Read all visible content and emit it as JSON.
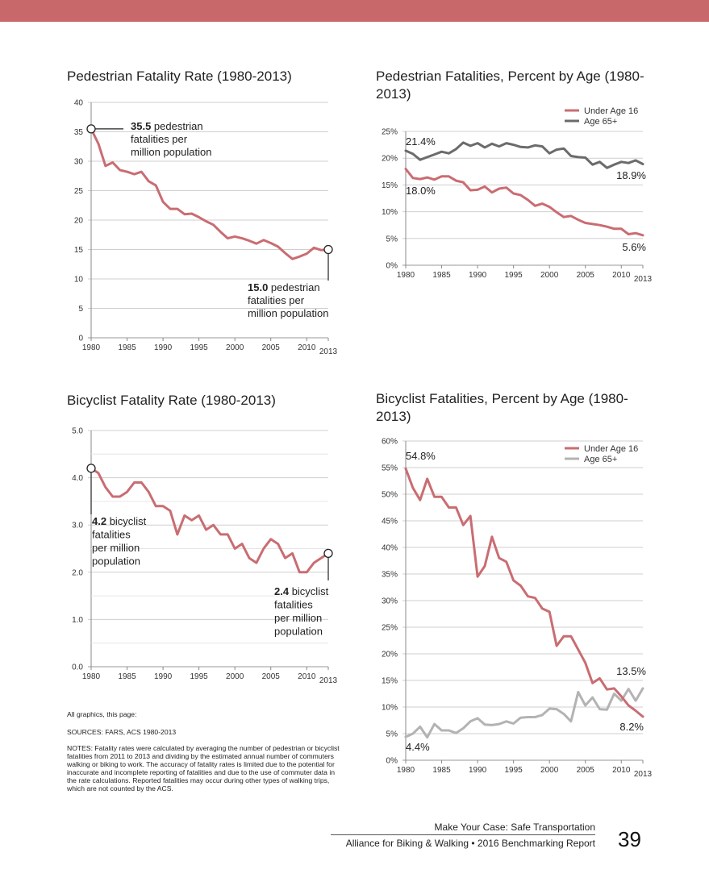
{
  "colors": {
    "top_bar": "#c8686b",
    "under16": "#c96d72",
    "age65_ped": "#6b6b6b",
    "age65_bike": "#b3b3b3",
    "rate_line": "#c96d72",
    "grid": "#cfcfcf"
  },
  "chart_data": [
    {
      "id": "ped_rate",
      "type": "line",
      "title": "Pedestrian Fatality Rate (1980-2013)",
      "xlim": [
        1980,
        2013
      ],
      "x_ticks": [
        1980,
        1985,
        1990,
        1995,
        2000,
        2005,
        2010,
        2013
      ],
      "ylim": [
        0,
        40
      ],
      "y_ticks": [
        0,
        5,
        10,
        15,
        20,
        25,
        30,
        35,
        40
      ],
      "y_tick_labels": [
        "0",
        "5",
        "10",
        "15",
        "20",
        "25",
        "30",
        "35",
        "40"
      ],
      "grid": true,
      "series": [
        {
          "key": "rate",
          "values": [
            35.5,
            33.0,
            29.2,
            29.8,
            28.5,
            28.2,
            27.8,
            28.2,
            26.6,
            25.9,
            23.1,
            21.9,
            21.9,
            21.0,
            21.1,
            20.5,
            19.8,
            19.2,
            18.0,
            16.9,
            17.2,
            16.9,
            16.5,
            16.0,
            16.6,
            16.1,
            15.5,
            14.4,
            13.4,
            13.8,
            14.3,
            15.3,
            14.9,
            15.0
          ]
        }
      ],
      "annotations": [
        {
          "value": "35.5",
          "lines": [
            "pedestrian",
            "fatalities per",
            "million population"
          ],
          "year": 1980
        },
        {
          "value": "15.0",
          "lines": [
            "pedestrian",
            "fatalities per",
            "million population"
          ],
          "year": 2013
        }
      ]
    },
    {
      "id": "ped_age",
      "type": "line",
      "title": "Pedestrian Fatalities, Percent by Age (1980-2013)",
      "xlim": [
        1980,
        2013
      ],
      "x_ticks": [
        1980,
        1985,
        1990,
        1995,
        2000,
        2005,
        2010,
        2013
      ],
      "ylim": [
        0,
        25
      ],
      "y_ticks": [
        0,
        5,
        10,
        15,
        20,
        25
      ],
      "y_tick_labels": [
        "0%",
        "5%",
        "10%",
        "15%",
        "20%",
        "25%"
      ],
      "grid": true,
      "legend_position": "top-right",
      "series": [
        {
          "key": "under16",
          "name": "Under Age 16",
          "values": [
            18.0,
            16.3,
            16.1,
            16.4,
            16.0,
            16.6,
            16.6,
            15.8,
            15.5,
            14.0,
            14.1,
            14.7,
            13.6,
            14.3,
            14.5,
            13.4,
            13.1,
            12.2,
            11.1,
            11.5,
            10.9,
            9.9,
            9.0,
            9.2,
            8.5,
            7.9,
            7.7,
            7.5,
            7.2,
            6.8,
            6.8,
            5.8,
            6.0,
            5.6
          ]
        },
        {
          "key": "age65",
          "name": "Age 65+",
          "values": [
            21.4,
            20.8,
            19.7,
            20.2,
            20.7,
            21.2,
            20.9,
            21.7,
            22.9,
            22.3,
            22.8,
            22.0,
            22.7,
            22.2,
            22.8,
            22.5,
            22.1,
            22.0,
            22.4,
            22.2,
            20.9,
            21.6,
            21.8,
            20.4,
            20.2,
            20.1,
            18.8,
            19.3,
            18.2,
            18.8,
            19.3,
            19.1,
            19.6,
            18.9
          ]
        }
      ],
      "end_labels": [
        "21.4%",
        "18.0%",
        "18.9%",
        "5.6%"
      ]
    },
    {
      "id": "bike_rate",
      "type": "line",
      "title": "Bicyclist Fatality Rate (1980-2013)",
      "xlim": [
        1980,
        2013
      ],
      "x_ticks": [
        1980,
        1985,
        1990,
        1995,
        2000,
        2005,
        2010,
        2013
      ],
      "ylim": [
        0,
        5
      ],
      "y_ticks": [
        0,
        1,
        2,
        3,
        4,
        5
      ],
      "y_tick_labels": [
        "0.0",
        "1.0",
        "2.0",
        "3.0",
        "4.0",
        "5.0"
      ],
      "grid": true,
      "series": [
        {
          "key": "rate",
          "values": [
            4.2,
            4.1,
            3.8,
            3.6,
            3.6,
            3.7,
            3.9,
            3.9,
            3.7,
            3.4,
            3.4,
            3.3,
            2.8,
            3.2,
            3.1,
            3.2,
            2.9,
            3.0,
            2.8,
            2.8,
            2.5,
            2.6,
            2.3,
            2.2,
            2.5,
            2.7,
            2.6,
            2.3,
            2.4,
            2.0,
            2.0,
            2.2,
            2.3,
            2.4
          ]
        }
      ],
      "annotations": [
        {
          "value": "4.2",
          "lines": [
            "bicyclist",
            "fatalities",
            "per million",
            "population"
          ],
          "year": 1980
        },
        {
          "value": "2.4",
          "lines": [
            "bicyclist",
            "fatalities",
            "per million",
            "population"
          ],
          "year": 2013
        }
      ]
    },
    {
      "id": "bike_age",
      "type": "line",
      "title": "Bicyclist Fatalities, Percent by Age (1980-2013)",
      "xlim": [
        1980,
        2013
      ],
      "x_ticks": [
        1980,
        1985,
        1990,
        1995,
        2000,
        2005,
        2010,
        2013
      ],
      "ylim": [
        0,
        60
      ],
      "y_ticks": [
        0,
        5,
        10,
        15,
        20,
        25,
        30,
        35,
        40,
        45,
        50,
        55,
        60
      ],
      "y_tick_labels": [
        "0%",
        "5%",
        "10%",
        "15%",
        "20%",
        "25%",
        "30%",
        "35%",
        "40%",
        "45%",
        "50%",
        "55%",
        "60%"
      ],
      "grid": true,
      "legend_position": "top-right",
      "series": [
        {
          "key": "under16",
          "name": "Under Age 16",
          "values": [
            54.8,
            51.2,
            48.9,
            52.9,
            49.5,
            49.5,
            47.5,
            47.5,
            44.2,
            45.9,
            34.5,
            36.5,
            42.0,
            38.0,
            37.3,
            33.8,
            32.8,
            30.8,
            30.5,
            28.5,
            27.9,
            21.5,
            23.3,
            23.3,
            20.8,
            18.3,
            14.5,
            15.4,
            13.3,
            13.5,
            12.0,
            10.3,
            9.3,
            8.2
          ]
        },
        {
          "key": "age65",
          "name": "Age 65+",
          "values": [
            4.4,
            5.0,
            6.3,
            4.3,
            6.8,
            5.6,
            5.6,
            5.1,
            6.0,
            7.3,
            7.9,
            6.7,
            6.6,
            6.8,
            7.3,
            6.9,
            8.0,
            8.1,
            8.1,
            8.5,
            9.7,
            9.6,
            8.7,
            7.3,
            12.8,
            10.3,
            11.8,
            9.6,
            9.5,
            12.5,
            11.2,
            13.4,
            11.2,
            13.5
          ]
        }
      ],
      "end_labels": [
        "54.8%",
        "4.4%",
        "13.5%",
        "8.2%"
      ]
    }
  ],
  "notes": {
    "credit": "All graphics, this page:",
    "sources": "SOURCES: FARS, ACS 1980-2013",
    "text": "NOTES: Fatality rates were calculated by averaging the number of pedestrian or bicyclist fatalities from 2011 to 2013 and dividing by the estimated annual number of commuters walking or biking to work. The accuracy of fatality rates is limited due to the potential for inaccurate and incomplete reporting of fatalities and due to the use of commuter data in the rate calculations. Reported fatalities may occur during other types of walking trips, which are not counted by the ACS."
  },
  "footer": {
    "line1": "Make Your Case: Safe Transportation",
    "line2": "Alliance for Biking & Walking • 2016 Benchmarking Report",
    "page_number": "39"
  }
}
